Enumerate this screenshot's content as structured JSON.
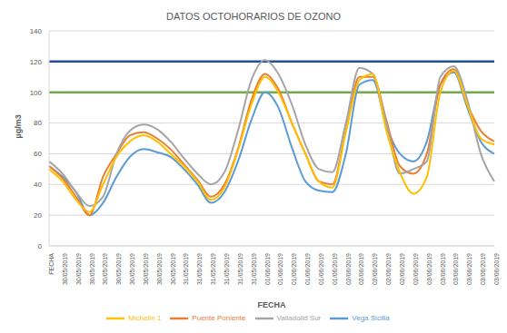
{
  "chart_data": {
    "type": "line",
    "title": "DATOS OCTOHORARIOS DE OZONO",
    "x_label": "FECHA",
    "y_label": "µg/m3",
    "categories": [
      "FECHA",
      "30/05/2019",
      "30/05/2019",
      "30/05/2019",
      "30/05/2019",
      "30/05/2019",
      "30/05/2019",
      "30/05/2019",
      "30/05/2019",
      "30/05/2019",
      "31/05/2019",
      "31/05/2019",
      "31/05/2019",
      "31/05/2019",
      "31/05/2019",
      "31/05/2019",
      "01/06/2019",
      "01/06/2019",
      "01/06/2019",
      "01/06/2019",
      "01/06/2019",
      "01/06/2019",
      "02/06/2019",
      "02/06/2019",
      "02/06/2019",
      "02/06/2019",
      "02/06/2019",
      "02/06/2019",
      "03/06/2019",
      "03/06/2019",
      "03/06/2019",
      "03/06/2019",
      "03/06/2019",
      "03/06/2019"
    ],
    "series": [
      {
        "name": "Vega Sicilia",
        "color": "#5b9bd5",
        "values": [
          52,
          45,
          35,
          20,
          28,
          45,
          58,
          63,
          61,
          58,
          50,
          40,
          28,
          35,
          55,
          82,
          100,
          90,
          64,
          42,
          36,
          35,
          60,
          105,
          108,
          78,
          60,
          55,
          68,
          105,
          113,
          90,
          68,
          60
        ]
      },
      {
        "name": "Puente Poniente",
        "color": "#ed7d31",
        "values": [
          52,
          44,
          32,
          20,
          45,
          60,
          72,
          74,
          70,
          63,
          53,
          43,
          32,
          40,
          63,
          95,
          112,
          102,
          80,
          60,
          42,
          40,
          75,
          110,
          110,
          82,
          52,
          47,
          60,
          105,
          115,
          92,
          75,
          68
        ]
      },
      {
        "name": "Valladolid Sur",
        "color": "#a5a5a5",
        "values": [
          55,
          47,
          35,
          26,
          32,
          60,
          75,
          79,
          76,
          68,
          57,
          47,
          40,
          48,
          75,
          108,
          121,
          112,
          92,
          66,
          50,
          48,
          80,
          116,
          112,
          80,
          47,
          50,
          55,
          110,
          117,
          95,
          60,
          42
        ]
      },
      {
        "name": "Michelin 1",
        "color": "#ffc000",
        "values": [
          50,
          42,
          30,
          22,
          40,
          58,
          68,
          72,
          68,
          60,
          52,
          42,
          30,
          38,
          62,
          92,
          110,
          100,
          80,
          60,
          42,
          38,
          74,
          108,
          112,
          75,
          48,
          34,
          45,
          100,
          114,
          92,
          70,
          66
        ]
      }
    ],
    "reference_lines": [
      {
        "value": 120,
        "color": "#1f4e9c"
      },
      {
        "value": 100,
        "color": "#70ad47"
      }
    ],
    "ylim": [
      0,
      140
    ],
    "yticks": [
      0,
      20,
      40,
      60,
      80,
      100,
      120,
      140
    ],
    "grid": true,
    "legend": "bottom"
  }
}
